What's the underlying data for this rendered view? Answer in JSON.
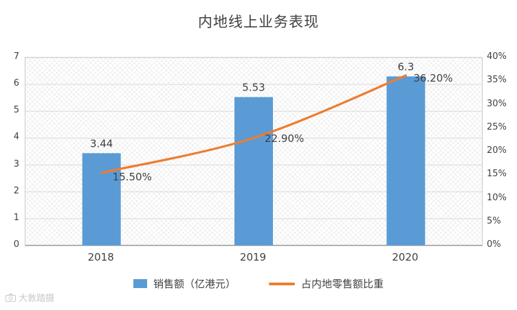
{
  "watermark": {
    "icon": "camera-icon",
    "text": "大敦踏摄"
  },
  "chart_data": {
    "type": "bar+line",
    "title": "内地线上业务表现",
    "categories": [
      "2018",
      "2019",
      "2020"
    ],
    "series": [
      {
        "name": "销售额（亿港元）",
        "type": "bar",
        "axis": "left",
        "color": "#5B9BD5",
        "values": [
          3.44,
          5.53,
          6.3
        ],
        "labels": [
          "3.44",
          "5.53",
          "6.3"
        ]
      },
      {
        "name": "占内地零售额比重",
        "type": "line",
        "axis": "right",
        "color": "#ED7D31",
        "values": [
          15.5,
          22.9,
          36.2
        ],
        "labels": [
          "15.50%",
          "22.90%",
          "36.20%"
        ]
      }
    ],
    "left_axis": {
      "min": 0,
      "max": 7,
      "ticks": [
        "0",
        "1",
        "2",
        "3",
        "4",
        "5",
        "6",
        "7"
      ]
    },
    "right_axis": {
      "min": 0,
      "max": 40,
      "ticks": [
        "0%",
        "5%",
        "10%",
        "15%",
        "20%",
        "25%",
        "30%",
        "35%",
        "40%"
      ]
    },
    "grid": true,
    "legend_position": "bottom"
  }
}
